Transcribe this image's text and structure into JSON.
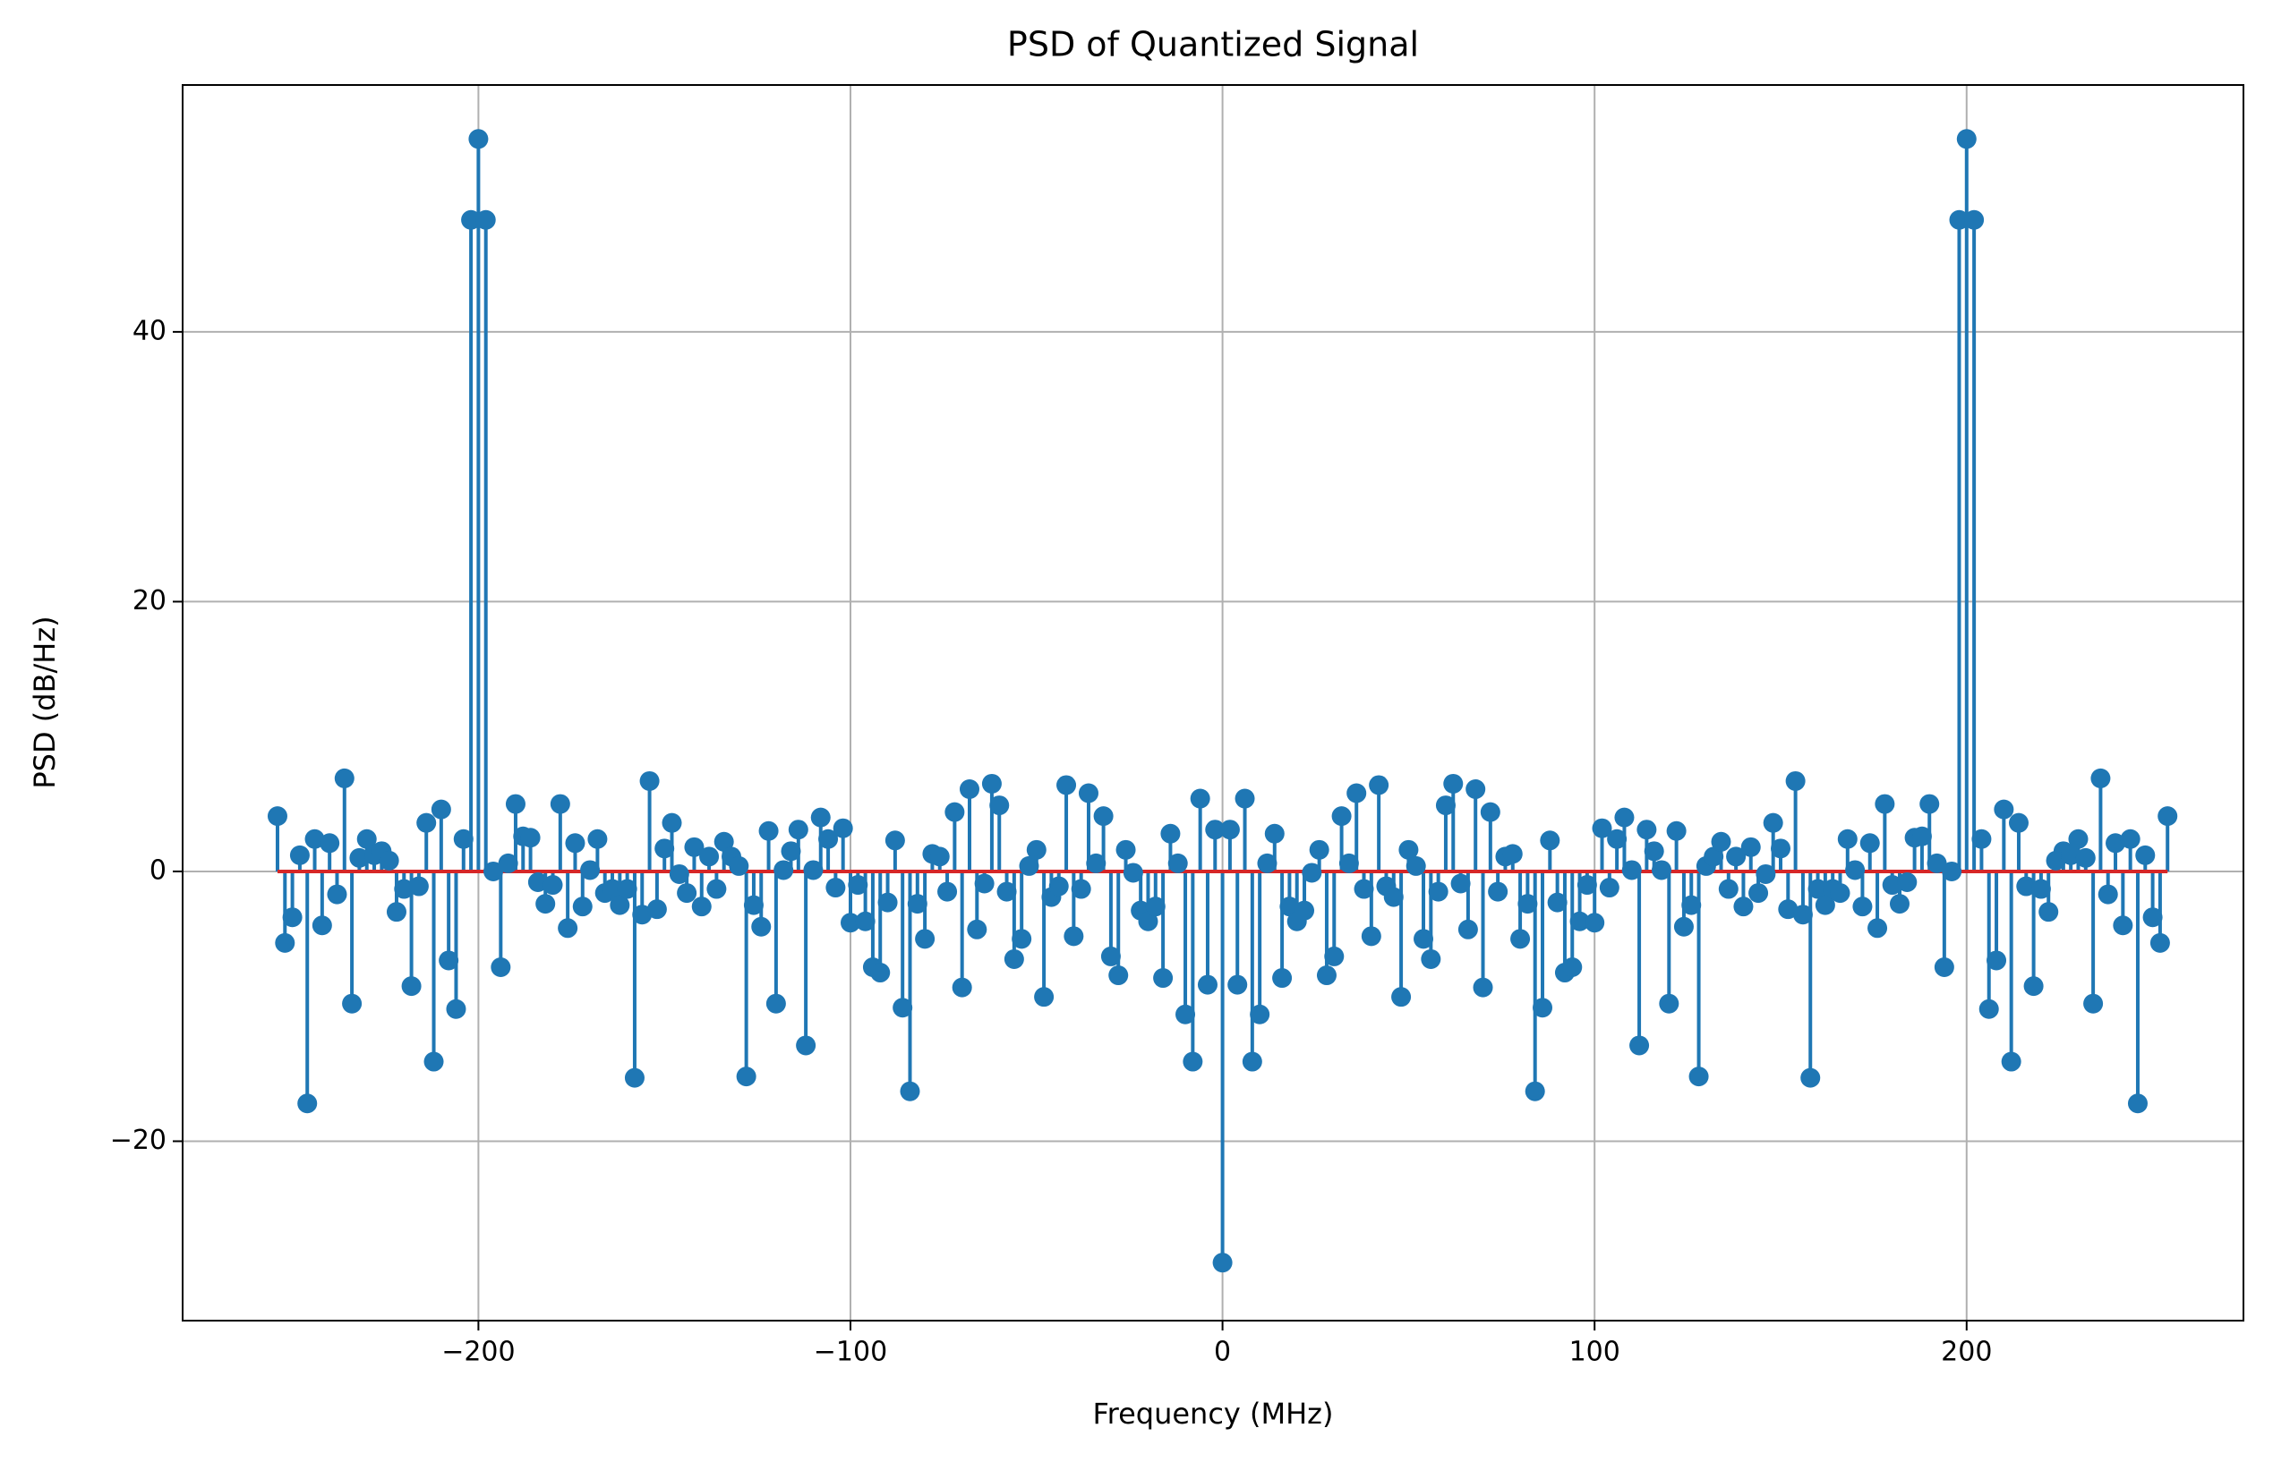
{
  "chart_data": {
    "type": "stem",
    "title": "PSD of Quantized Signal",
    "x_label": "Frequency (MHz)",
    "y_label": "PSD (dB/Hz)",
    "color": "#1f77b4",
    "baseline_color": "#d62728",
    "grid": true,
    "xlim": [
      -279.5,
      274.4
    ],
    "ylim": [
      -33.3,
      58.3
    ],
    "xticks": [
      {
        "value": -200,
        "label": "−200"
      },
      {
        "value": -100,
        "label": "−100"
      },
      0,
      100,
      200
    ],
    "yticks": [
      {
        "value": -20,
        "label": "−20"
      },
      0,
      20,
      40
    ],
    "x": [
      -254,
      -252,
      -250,
      -248,
      -246,
      -244,
      -242,
      -240,
      -238,
      -236,
      -234,
      -232,
      -230,
      -228,
      -226,
      -224,
      -222,
      -220,
      -218,
      -216,
      -214,
      -212,
      -210,
      -208,
      -206,
      -204,
      -202,
      -200,
      -198,
      -196,
      -194,
      -192,
      -190,
      -188,
      -186,
      -184,
      -182,
      -180,
      -178,
      -176,
      -174,
      -172,
      -170,
      -168,
      -166,
      -164,
      -162,
      -160,
      -158,
      -156,
      -154,
      -152,
      -150,
      -148,
      -146,
      -144,
      -142,
      -140,
      -138,
      -136,
      -134,
      -132,
      -130,
      -128,
      -126,
      -124,
      -122,
      -120,
      -118,
      -116,
      -114,
      -112,
      -110,
      -108,
      -106,
      -104,
      -102,
      -100,
      -98,
      -96,
      -94,
      -92,
      -90,
      -88,
      -86,
      -84,
      -82,
      -80,
      -78,
      -76,
      -74,
      -72,
      -70,
      -68,
      -66,
      -64,
      -62,
      -60,
      -58,
      -56,
      -54,
      -52,
      -50,
      -48,
      -46,
      -44,
      -42,
      -40,
      -38,
      -36,
      -34,
      -32,
      -30,
      -28,
      -26,
      -24,
      -22,
      -20,
      -18,
      -16,
      -14,
      -12,
      -10,
      -8,
      -6,
      -4,
      -2,
      0,
      2,
      4,
      6,
      8,
      10,
      12,
      14,
      16,
      18,
      20,
      22,
      24,
      26,
      28,
      30,
      32,
      34,
      36,
      38,
      40,
      42,
      44,
      46,
      48,
      50,
      52,
      54,
      56,
      58,
      60,
      62,
      64,
      66,
      68,
      70,
      72,
      74,
      76,
      78,
      80,
      82,
      84,
      86,
      88,
      90,
      92,
      94,
      96,
      98,
      100,
      102,
      104,
      106,
      108,
      110,
      112,
      114,
      116,
      118,
      120,
      122,
      124,
      126,
      128,
      130,
      132,
      134,
      136,
      138,
      140,
      142,
      144,
      146,
      148,
      150,
      152,
      154,
      156,
      158,
      160,
      162,
      164,
      166,
      168,
      170,
      172,
      174,
      176,
      178,
      180,
      182,
      184,
      186,
      188,
      190,
      192,
      194,
      196,
      198,
      200,
      202,
      204,
      206,
      208,
      210,
      212,
      214,
      216,
      218,
      220,
      222,
      224,
      226,
      228,
      230,
      232,
      234,
      236,
      238,
      240,
      242,
      244,
      246,
      248,
      250,
      252,
      254
    ],
    "values": [
      4.1,
      -5.3,
      -3.4,
      1.2,
      -17.2,
      2.4,
      -4.0,
      2.1,
      -1.7,
      6.9,
      -9.8,
      1.0,
      2.4,
      1.2,
      1.5,
      0.8,
      -3.0,
      -1.3,
      -8.5,
      -1.1,
      3.6,
      -14.1,
      4.6,
      -6.6,
      -10.2,
      2.4,
      48.3,
      54.3,
      48.3,
      0,
      -7.1,
      0.6,
      5.0,
      2.6,
      2.5,
      -0.8,
      -2.4,
      -1.0,
      5.0,
      -4.2,
      2.1,
      -2.6,
      0.1,
      2.4,
      -1.6,
      -1.3,
      -2.5,
      -1.3,
      -15.3,
      -3.2,
      6.7,
      -2.8,
      1.7,
      3.6,
      -0.2,
      -1.6,
      1.8,
      -2.6,
      1.1,
      -1.3,
      2.2,
      1.1,
      0.4,
      -15.2,
      -2.5,
      -4.1,
      3.0,
      -9.8,
      0.1,
      1.5,
      3.1,
      -12.9,
      0.1,
      4.0,
      2.4,
      -1.2,
      3.2,
      -3.8,
      -1.0,
      -3.7,
      -7.1,
      -7.5,
      -2.3,
      2.3,
      -10.1,
      -16.3,
      -2.4,
      -5.0,
      1.3,
      1.1,
      -1.5,
      4.4,
      -8.6,
      6.1,
      -4.3,
      -0.9,
      6.5,
      4.9,
      -1.5,
      -6.5,
      -5.0,
      0.4,
      1.6,
      -9.3,
      -1.9,
      -1.1,
      6.4,
      -4.8,
      -1.3,
      5.8,
      0.6,
      4.1,
      -6.3,
      -7.7,
      1.6,
      -0.1,
      -2.9,
      -3.7,
      -2.6,
      -7.9,
      2.8,
      0.6,
      -10.6,
      -14.1,
      5.4,
      -8.4,
      3.1,
      -29,
      3.1,
      -8.4,
      5.4,
      -14.1,
      -10.6,
      0.6,
      2.8,
      -7.9,
      -2.6,
      -3.7,
      -2.9,
      -0.1,
      1.6,
      -7.7,
      -6.3,
      4.1,
      0.6,
      5.8,
      -1.3,
      -4.8,
      6.4,
      -1.1,
      -1.9,
      -9.3,
      1.6,
      0.4,
      -5.0,
      -6.5,
      -1.5,
      4.9,
      6.5,
      -0.9,
      -4.3,
      6.1,
      -8.6,
      4.4,
      -1.5,
      1.1,
      1.3,
      -5.0,
      -2.4,
      -16.3,
      -10.1,
      2.3,
      -2.3,
      -7.5,
      -7.1,
      -3.7,
      -1.0,
      -3.8,
      3.2,
      -1.2,
      2.4,
      4.0,
      0.1,
      -12.9,
      3.1,
      1.5,
      0.1,
      -9.8,
      3.0,
      -4.1,
      -2.5,
      -15.2,
      0.4,
      1.1,
      2.2,
      -1.3,
      1.1,
      -2.6,
      1.8,
      -1.6,
      -0.2,
      3.6,
      1.7,
      -2.8,
      6.7,
      -3.2,
      -15.3,
      -1.3,
      -2.5,
      -1.3,
      -1.6,
      2.4,
      0.1,
      -2.6,
      2.1,
      -4.2,
      5.0,
      -1.0,
      -2.4,
      -0.8,
      2.5,
      2.6,
      5.0,
      0.6,
      -7.1,
      0,
      48.3,
      54.3,
      48.3,
      2.4,
      -10.2,
      -6.6,
      4.6,
      -14.1,
      3.6,
      -1.1,
      -8.5,
      -1.3,
      -3.0,
      0.8,
      1.5,
      1.2,
      2.4,
      1.0,
      -9.8,
      6.9,
      -1.7,
      2.1,
      -4.0,
      2.4,
      -17.2,
      1.2,
      -3.4,
      -5.3,
      4.1
    ]
  }
}
